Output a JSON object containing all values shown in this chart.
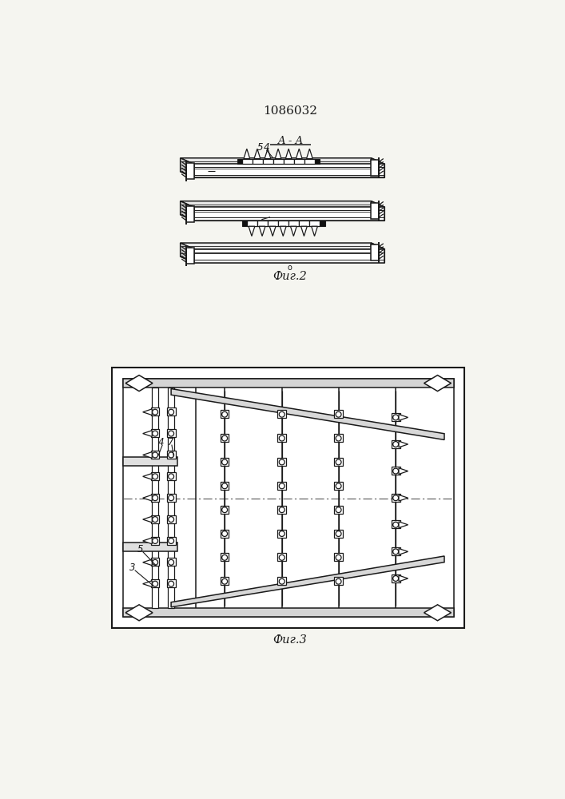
{
  "title_text": "1086032",
  "fig2_label": "Фиг.2",
  "fig3_label": "Фиг.3",
  "aa_label": "A - A",
  "bg_color": "#f5f5f0",
  "line_color": "#1a1a1a",
  "line_width": 1.1,
  "fig_width": 7.07,
  "fig_height": 10.0
}
